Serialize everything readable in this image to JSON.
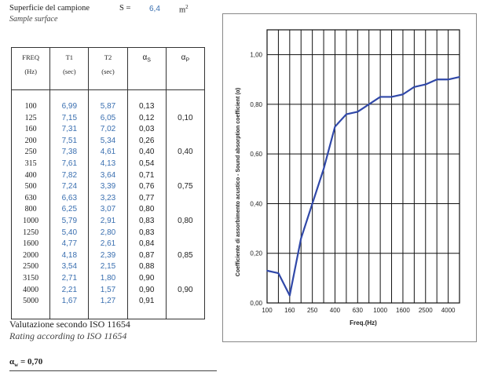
{
  "header": {
    "surface_label": "Superficie del campione",
    "surface_label_en": "Sample surface",
    "symbol": "S =",
    "value": "6,4",
    "unit": "m",
    "unit_exp": "2"
  },
  "table": {
    "columns": [
      {
        "label": "FREQ",
        "sub": "(Hz)"
      },
      {
        "label": "T1",
        "sub": "(sec)"
      },
      {
        "label": "T2",
        "sub": "(sec)"
      },
      {
        "label": "α",
        "sub_index": "S"
      },
      {
        "label": "α",
        "sub_index": "P"
      }
    ],
    "rows": [
      {
        "freq": "100",
        "t1": "6,99",
        "t2": "5,87",
        "as": "0,13",
        "ap": ""
      },
      {
        "freq": "125",
        "t1": "7,15",
        "t2": "6,05",
        "as": "0,12",
        "ap": "0,10"
      },
      {
        "freq": "160",
        "t1": "7,31",
        "t2": "7,02",
        "as": "0,03",
        "ap": ""
      },
      {
        "freq": "200",
        "t1": "7,51",
        "t2": "5,34",
        "as": "0,26",
        "ap": ""
      },
      {
        "freq": "250",
        "t1": "7,38",
        "t2": "4,61",
        "as": "0,40",
        "ap": "0,40"
      },
      {
        "freq": "315",
        "t1": "7,61",
        "t2": "4,13",
        "as": "0,54",
        "ap": ""
      },
      {
        "freq": "400",
        "t1": "7,82",
        "t2": "3,64",
        "as": "0,71",
        "ap": ""
      },
      {
        "freq": "500",
        "t1": "7,24",
        "t2": "3,39",
        "as": "0,76",
        "ap": "0,75"
      },
      {
        "freq": "630",
        "t1": "6,63",
        "t2": "3,23",
        "as": "0,77",
        "ap": ""
      },
      {
        "freq": "800",
        "t1": "6,25",
        "t2": "3,07",
        "as": "0,80",
        "ap": ""
      },
      {
        "freq": "1000",
        "t1": "5,79",
        "t2": "2,91",
        "as": "0,83",
        "ap": "0,80"
      },
      {
        "freq": "1250",
        "t1": "5,40",
        "t2": "2,80",
        "as": "0,83",
        "ap": ""
      },
      {
        "freq": "1600",
        "t1": "4,77",
        "t2": "2,61",
        "as": "0,84",
        "ap": ""
      },
      {
        "freq": "2000",
        "t1": "4,18",
        "t2": "2,39",
        "as": "0,87",
        "ap": "0,85"
      },
      {
        "freq": "2500",
        "t1": "3,54",
        "t2": "2,15",
        "as": "0,88",
        "ap": ""
      },
      {
        "freq": "3150",
        "t1": "2,71",
        "t2": "1,80",
        "as": "0,90",
        "ap": ""
      },
      {
        "freq": "4000",
        "t1": "2,21",
        "t2": "1,57",
        "as": "0,90",
        "ap": "0,90"
      },
      {
        "freq": "5000",
        "t1": "1,67",
        "t2": "1,27",
        "as": "0,91",
        "ap": ""
      }
    ]
  },
  "rating": {
    "title": "Valutazione secondo ISO 11654",
    "title_en": "Rating according to ISO 11654",
    "symbol": "α",
    "symbol_sub": "w",
    "value": "= 0,70"
  },
  "chart_data": {
    "type": "line",
    "xlabel": "Freq.(Hz)",
    "ylabel": "Coefficiente di assorbimento acustico - Sound absorption coefficient (α)",
    "x": [
      "100",
      "125",
      "160",
      "200",
      "250",
      "315",
      "400",
      "500",
      "630",
      "800",
      "1000",
      "1250",
      "1600",
      "2000",
      "2500",
      "3150",
      "4000",
      "5000"
    ],
    "x_tick_labels": [
      "100",
      "160",
      "250",
      "400",
      "630",
      "1000",
      "1600",
      "2500",
      "4000"
    ],
    "y_tick_labels": [
      "0,00",
      "0,20",
      "0,40",
      "0,60",
      "0,80",
      "1,00"
    ],
    "ylim": [
      0,
      1.1
    ],
    "grid": true,
    "line_color": "#3048a8",
    "series": [
      {
        "values": [
          0.13,
          0.12,
          0.03,
          0.26,
          0.4,
          0.54,
          0.71,
          0.76,
          0.77,
          0.8,
          0.83,
          0.83,
          0.84,
          0.87,
          0.88,
          0.9,
          0.9,
          0.91
        ]
      }
    ]
  }
}
